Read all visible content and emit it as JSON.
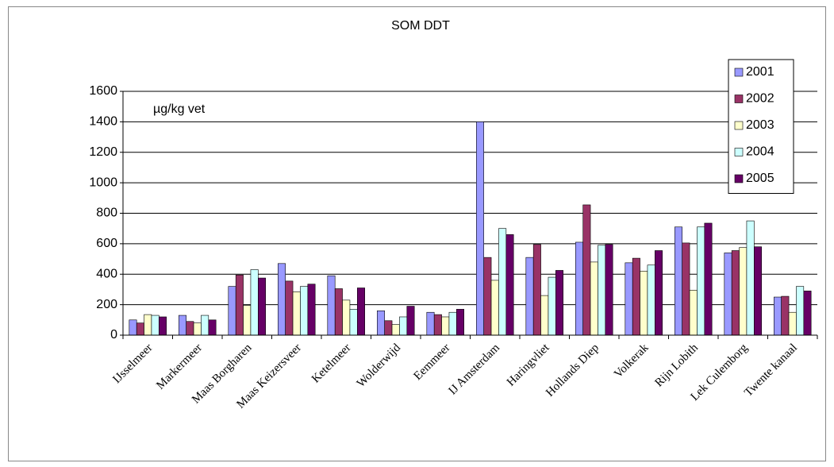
{
  "chart_data": {
    "type": "bar",
    "title": "SOM DDT",
    "annotation": "µg/kg vet",
    "categories": [
      "IJsselmeer",
      "Markermeer",
      "Maas Borgharen",
      "Maas Keizersveer",
      "Ketelmeer",
      "Wolderwijd",
      "Eemmeer",
      "IJ Amsterdam",
      "Haringvliet",
      "Hollands Diep",
      "Volkerak",
      "Rijn Lobith",
      "Lek Culemborg",
      "Twente kanaal"
    ],
    "series": [
      {
        "name": "2001",
        "color": "#9999ff",
        "values": [
          100,
          130,
          320,
          470,
          390,
          160,
          150,
          1400,
          510,
          610,
          475,
          710,
          540,
          250
        ]
      },
      {
        "name": "2002",
        "color": "#993366",
        "values": [
          80,
          90,
          395,
          355,
          305,
          95,
          135,
          510,
          595,
          855,
          505,
          605,
          555,
          255
        ]
      },
      {
        "name": "2003",
        "color": "#ffffcc",
        "values": [
          135,
          80,
          195,
          285,
          230,
          70,
          120,
          360,
          260,
          480,
          420,
          295,
          575,
          150
        ]
      },
      {
        "name": "2004",
        "color": "#ccffff",
        "values": [
          130,
          130,
          430,
          320,
          170,
          120,
          150,
          700,
          380,
          590,
          460,
          710,
          750,
          320
        ]
      },
      {
        "name": "2005",
        "color": "#660066",
        "values": [
          120,
          100,
          375,
          335,
          310,
          190,
          170,
          660,
          425,
          595,
          555,
          735,
          580,
          290
        ]
      }
    ],
    "ylim": [
      0,
      1600
    ],
    "yticks": [
      0,
      200,
      400,
      600,
      800,
      1000,
      1200,
      1400,
      1600
    ],
    "grid": true,
    "legend": "upper right"
  }
}
